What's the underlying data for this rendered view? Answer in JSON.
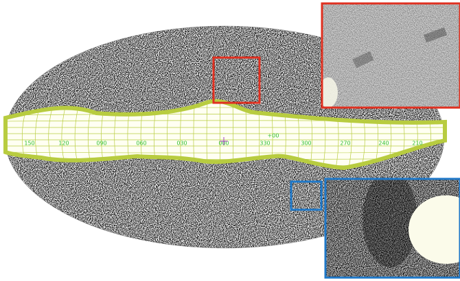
{
  "map": {
    "longitude_labels": [
      "150",
      "120",
      "090",
      "060",
      "030",
      "000",
      "330",
      "300",
      "270",
      "240",
      "210"
    ],
    "latitude_label": "+00"
  }
}
